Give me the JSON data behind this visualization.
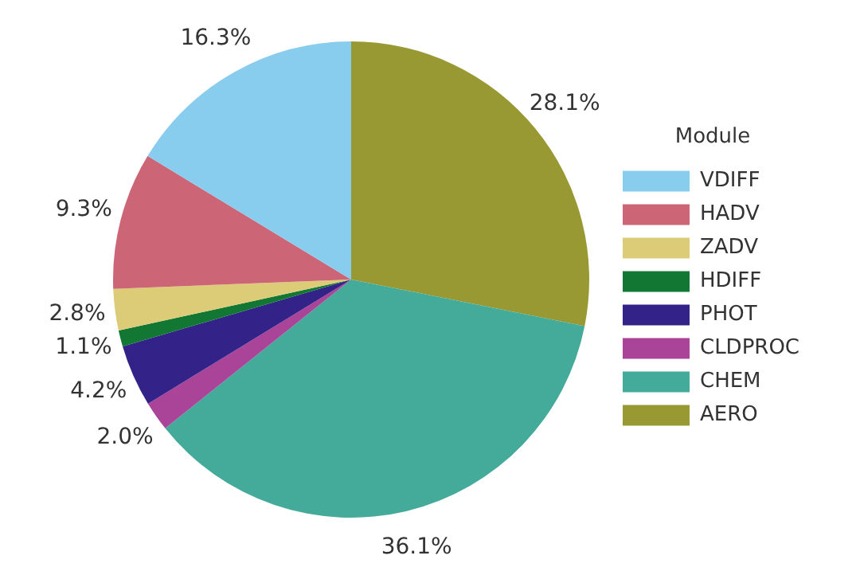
{
  "chart_data": {
    "type": "pie",
    "legend_title": "Module",
    "legend": "right",
    "categories": [
      "VDIFF",
      "HADV",
      "ZADV",
      "HDIFF",
      "PHOT",
      "CLDPROC",
      "CHEM",
      "AERO"
    ],
    "values": [
      16.3,
      9.3,
      2.8,
      1.1,
      4.2,
      2.0,
      36.1,
      28.1
    ],
    "value_labels": [
      "16.3%",
      "9.3%",
      "2.8%",
      "1.1%",
      "4.2%",
      "2.0%",
      "36.1%",
      "28.1%"
    ],
    "colors": [
      "#88ccee",
      "#cc6677",
      "#ddcc77",
      "#117733",
      "#332288",
      "#aa4499",
      "#44aa99",
      "#999933"
    ]
  }
}
